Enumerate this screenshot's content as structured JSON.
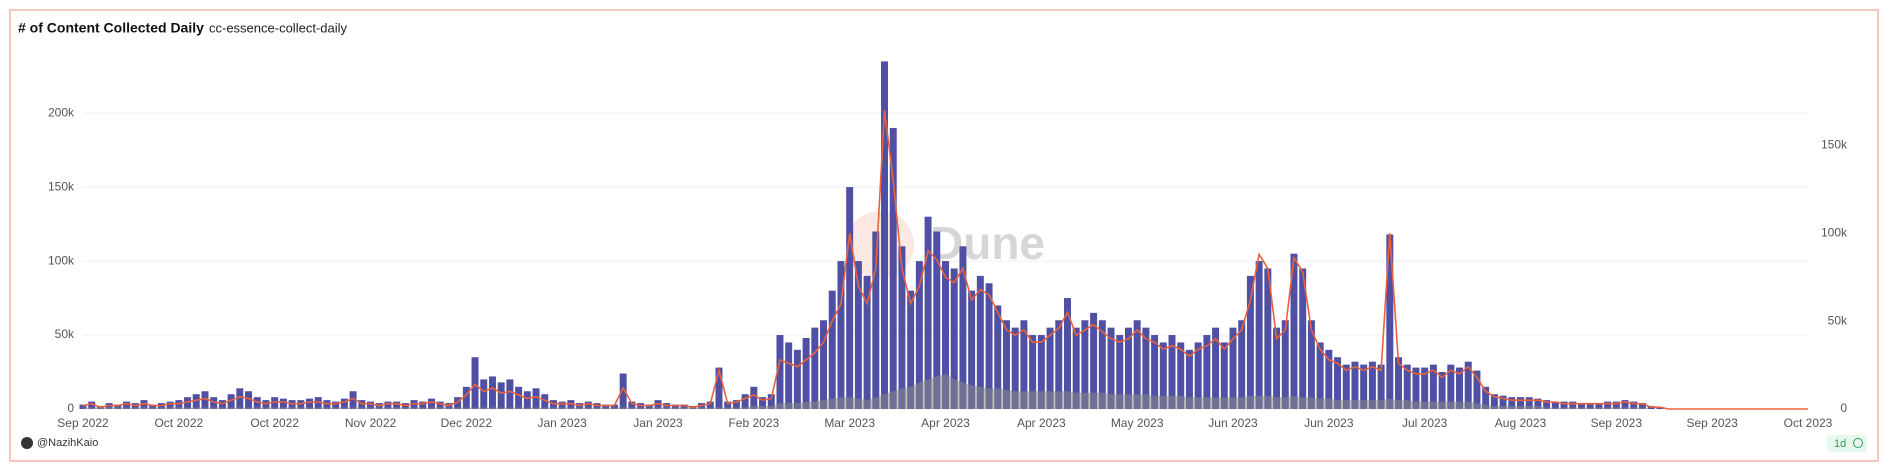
{
  "chart_data": {
    "type": "bar-line",
    "title": "# of Content Collected Daily",
    "subtitle": "cc-essence-collect-daily",
    "watermark": "Dune",
    "author": "@NazihKaio",
    "badge": "1d",
    "grid": true,
    "categories": [
      "Sep 2022",
      null,
      null,
      null,
      null,
      null,
      null,
      null,
      null,
      null,
      null,
      "Oct 2022",
      null,
      null,
      null,
      null,
      null,
      null,
      null,
      null,
      null,
      null,
      "Oct 2022",
      null,
      null,
      null,
      null,
      null,
      null,
      null,
      null,
      null,
      null,
      "Nov 2022",
      null,
      null,
      null,
      null,
      null,
      null,
      null,
      null,
      null,
      null,
      "Dec 2022",
      null,
      null,
      null,
      null,
      null,
      null,
      null,
      null,
      null,
      null,
      "Jan 2023",
      null,
      null,
      null,
      null,
      null,
      null,
      null,
      null,
      null,
      null,
      "Jan 2023",
      null,
      null,
      null,
      null,
      null,
      null,
      null,
      null,
      null,
      null,
      "Feb 2023",
      null,
      null,
      null,
      null,
      null,
      null,
      null,
      null,
      null,
      null,
      "Mar 2023",
      null,
      null,
      null,
      null,
      null,
      null,
      null,
      null,
      null,
      null,
      "Apr 2023",
      null,
      null,
      null,
      null,
      null,
      null,
      null,
      null,
      null,
      null,
      "Apr 2023",
      null,
      null,
      null,
      null,
      null,
      null,
      null,
      null,
      null,
      null,
      "May 2023",
      null,
      null,
      null,
      null,
      null,
      null,
      null,
      null,
      null,
      null,
      "Jun 2023",
      null,
      null,
      null,
      null,
      null,
      null,
      null,
      null,
      null,
      null,
      "Jun 2023",
      null,
      null,
      null,
      null,
      null,
      null,
      null,
      null,
      null,
      null,
      "Jul 2023",
      null,
      null,
      null,
      null,
      null,
      null,
      null,
      null,
      null,
      null,
      "Aug 2023",
      null,
      null,
      null,
      null,
      null,
      null,
      null,
      null,
      null,
      null,
      "Sep 2023",
      null,
      null,
      null,
      null,
      null,
      null,
      null,
      null,
      null,
      null,
      "Sep 2023",
      null,
      null,
      null,
      null,
      null,
      null,
      null,
      null,
      null,
      null,
      "Oct 2023"
    ],
    "ylim": [
      0,
      240000
    ],
    "yticks": [
      0,
      {
        "value": 50000,
        "label": "50k"
      },
      {
        "value": 100000,
        "label": "100k"
      },
      {
        "value": 150000,
        "label": "150k"
      },
      {
        "value": 200000,
        "label": "200k"
      }
    ],
    "y2lim": [
      0,
      202000
    ],
    "y2ticks": [
      0,
      {
        "value": 50000,
        "label": "50k"
      },
      {
        "value": 100000,
        "label": "100k"
      },
      {
        "value": 150000,
        "label": "150k"
      }
    ],
    "series": [
      {
        "kind": "bar",
        "color": "#4f4fa3",
        "values": [
          3000,
          5000,
          2000,
          4000,
          3000,
          5000,
          4000,
          6000,
          3000,
          4000,
          5000,
          6000,
          8000,
          10000,
          12000,
          8000,
          6000,
          10000,
          14000,
          12000,
          8000,
          6000,
          8000,
          7000,
          6000,
          6000,
          7000,
          8000,
          6000,
          5000,
          7000,
          12000,
          6000,
          5000,
          4000,
          5000,
          5000,
          4000,
          6000,
          5000,
          7000,
          5000,
          4000,
          8000,
          15000,
          35000,
          20000,
          22000,
          18000,
          20000,
          15000,
          12000,
          14000,
          10000,
          6000,
          5000,
          6000,
          4000,
          5000,
          4000,
          3000,
          3000,
          24000,
          5000,
          4000,
          3000,
          6000,
          4000,
          3000,
          3000,
          2000,
          4000,
          5000,
          28000,
          5000,
          6000,
          10000,
          15000,
          8000,
          10000,
          50000,
          45000,
          40000,
          48000,
          55000,
          60000,
          80000,
          100000,
          150000,
          100000,
          90000,
          120000,
          235000,
          190000,
          110000,
          80000,
          100000,
          130000,
          120000,
          100000,
          95000,
          110000,
          80000,
          90000,
          85000,
          70000,
          60000,
          55000,
          60000,
          50000,
          50000,
          55000,
          60000,
          75000,
          55000,
          60000,
          65000,
          60000,
          55000,
          50000,
          55000,
          60000,
          55000,
          50000,
          45000,
          50000,
          45000,
          40000,
          45000,
          50000,
          55000,
          45000,
          55000,
          60000,
          90000,
          100000,
          95000,
          55000,
          60000,
          105000,
          95000,
          60000,
          45000,
          40000,
          35000,
          30000,
          32000,
          30000,
          32000,
          30000,
          118000,
          35000,
          30000,
          28000,
          28000,
          30000,
          25000,
          30000,
          28000,
          32000,
          26000,
          15000,
          10000,
          9000,
          8000,
          8000,
          8000,
          7000,
          6000,
          5000,
          5000,
          5000,
          4000,
          4000,
          4000,
          5000,
          5000,
          6000,
          5000,
          4000,
          2000,
          1000,
          0,
          0,
          0,
          0,
          0,
          0,
          0,
          0,
          0,
          0,
          0,
          0,
          0,
          0,
          0,
          0,
          0
        ]
      },
      {
        "kind": "line",
        "axis": "y2",
        "color": "#e8623f",
        "values": [
          2000,
          3000,
          1000,
          2000,
          2000,
          3000,
          2000,
          3000,
          2000,
          2000,
          3000,
          3000,
          4000,
          5000,
          6000,
          4000,
          3000,
          5000,
          7000,
          6000,
          4000,
          3000,
          4000,
          4000,
          3000,
          3000,
          4000,
          4000,
          3000,
          3000,
          4000,
          6000,
          3000,
          3000,
          2000,
          3000,
          3000,
          2000,
          3000,
          3000,
          4000,
          3000,
          2000,
          4000,
          8000,
          14000,
          10000,
          12000,
          9000,
          10000,
          8000,
          6000,
          7000,
          5000,
          3000,
          3000,
          3000,
          2000,
          3000,
          2000,
          2000,
          2000,
          12000,
          3000,
          2000,
          2000,
          3000,
          2000,
          2000,
          2000,
          1000,
          2000,
          3000,
          22000,
          3000,
          4000,
          6000,
          8000,
          5000,
          6000,
          28000,
          26000,
          24000,
          28000,
          32000,
          38000,
          50000,
          60000,
          100000,
          70000,
          60000,
          80000,
          170000,
          130000,
          80000,
          60000,
          70000,
          90000,
          85000,
          75000,
          72000,
          80000,
          62000,
          68000,
          65000,
          55000,
          45000,
          42000,
          45000,
          38000,
          38000,
          42000,
          46000,
          55000,
          42000,
          45000,
          48000,
          44000,
          40000,
          38000,
          40000,
          45000,
          40000,
          38000,
          34000,
          36000,
          34000,
          30000,
          34000,
          36000,
          40000,
          34000,
          40000,
          45000,
          62000,
          88000,
          80000,
          40000,
          45000,
          86000,
          78000,
          45000,
          34000,
          28000,
          26000,
          22000,
          24000,
          22000,
          24000,
          22000,
          100000,
          26000,
          22000,
          20000,
          20000,
          22000,
          18000,
          22000,
          20000,
          24000,
          18000,
          10000,
          7000,
          6000,
          5000,
          5000,
          5000,
          5000,
          4000,
          4000,
          3000,
          3000,
          3000,
          3000,
          3000,
          3000,
          3000,
          4000,
          3000,
          3000,
          1000,
          1000,
          0,
          0,
          0,
          0,
          0,
          0,
          0,
          0,
          0,
          0,
          0,
          0,
          0,
          0,
          0,
          0,
          0
        ]
      },
      {
        "kind": "area",
        "color": "#8a8a8a",
        "values": [
          1000,
          1000,
          1000,
          1000,
          1000,
          1000,
          1000,
          1000,
          1000,
          1000,
          1000,
          1000,
          1000,
          1000,
          1000,
          1000,
          1000,
          1000,
          1000,
          1000,
          1000,
          1000,
          1000,
          1000,
          1000,
          1000,
          1000,
          1000,
          1000,
          1000,
          1000,
          1000,
          1000,
          1000,
          1000,
          1000,
          1000,
          1000,
          1000,
          1000,
          1000,
          1000,
          1000,
          1000,
          1000,
          1000,
          1000,
          1000,
          1000,
          1000,
          1000,
          1000,
          1000,
          1000,
          1000,
          1000,
          1000,
          1000,
          1000,
          1000,
          1000,
          1000,
          1000,
          1000,
          1000,
          1000,
          1000,
          1000,
          1000,
          1000,
          1000,
          1000,
          1000,
          1000,
          1000,
          1000,
          1000,
          2000,
          2000,
          2000,
          4000,
          4000,
          4000,
          5000,
          5000,
          6000,
          7000,
          8000,
          8000,
          7000,
          6000,
          8000,
          10000,
          12000,
          14000,
          15000,
          18000,
          20000,
          22000,
          24000,
          20000,
          18000,
          16000,
          15000,
          14000,
          14000,
          13000,
          12000,
          12000,
          12000,
          12000,
          12000,
          12000,
          12000,
          11000,
          11000,
          11000,
          11000,
          10000,
          10000,
          10000,
          10000,
          10000,
          9000,
          9000,
          9000,
          9000,
          8000,
          8000,
          8000,
          8000,
          8000,
          8000,
          8000,
          9000,
          9000,
          9000,
          8000,
          8000,
          9000,
          8000,
          8000,
          7000,
          7000,
          6000,
          6000,
          6000,
          6000,
          6000,
          6000,
          7000,
          6000,
          6000,
          5000,
          5000,
          5000,
          5000,
          5000,
          5000,
          5000,
          4000,
          3000,
          2000,
          2000,
          2000,
          2000,
          2000,
          2000,
          1000,
          1000,
          1000,
          1000,
          1000,
          1000,
          1000,
          1000,
          1000,
          1000,
          1000,
          1000,
          0,
          0,
          0,
          0,
          0,
          0,
          0,
          0,
          0,
          0,
          0,
          0,
          0,
          0,
          0,
          0,
          0,
          0,
          0
        ]
      }
    ]
  }
}
